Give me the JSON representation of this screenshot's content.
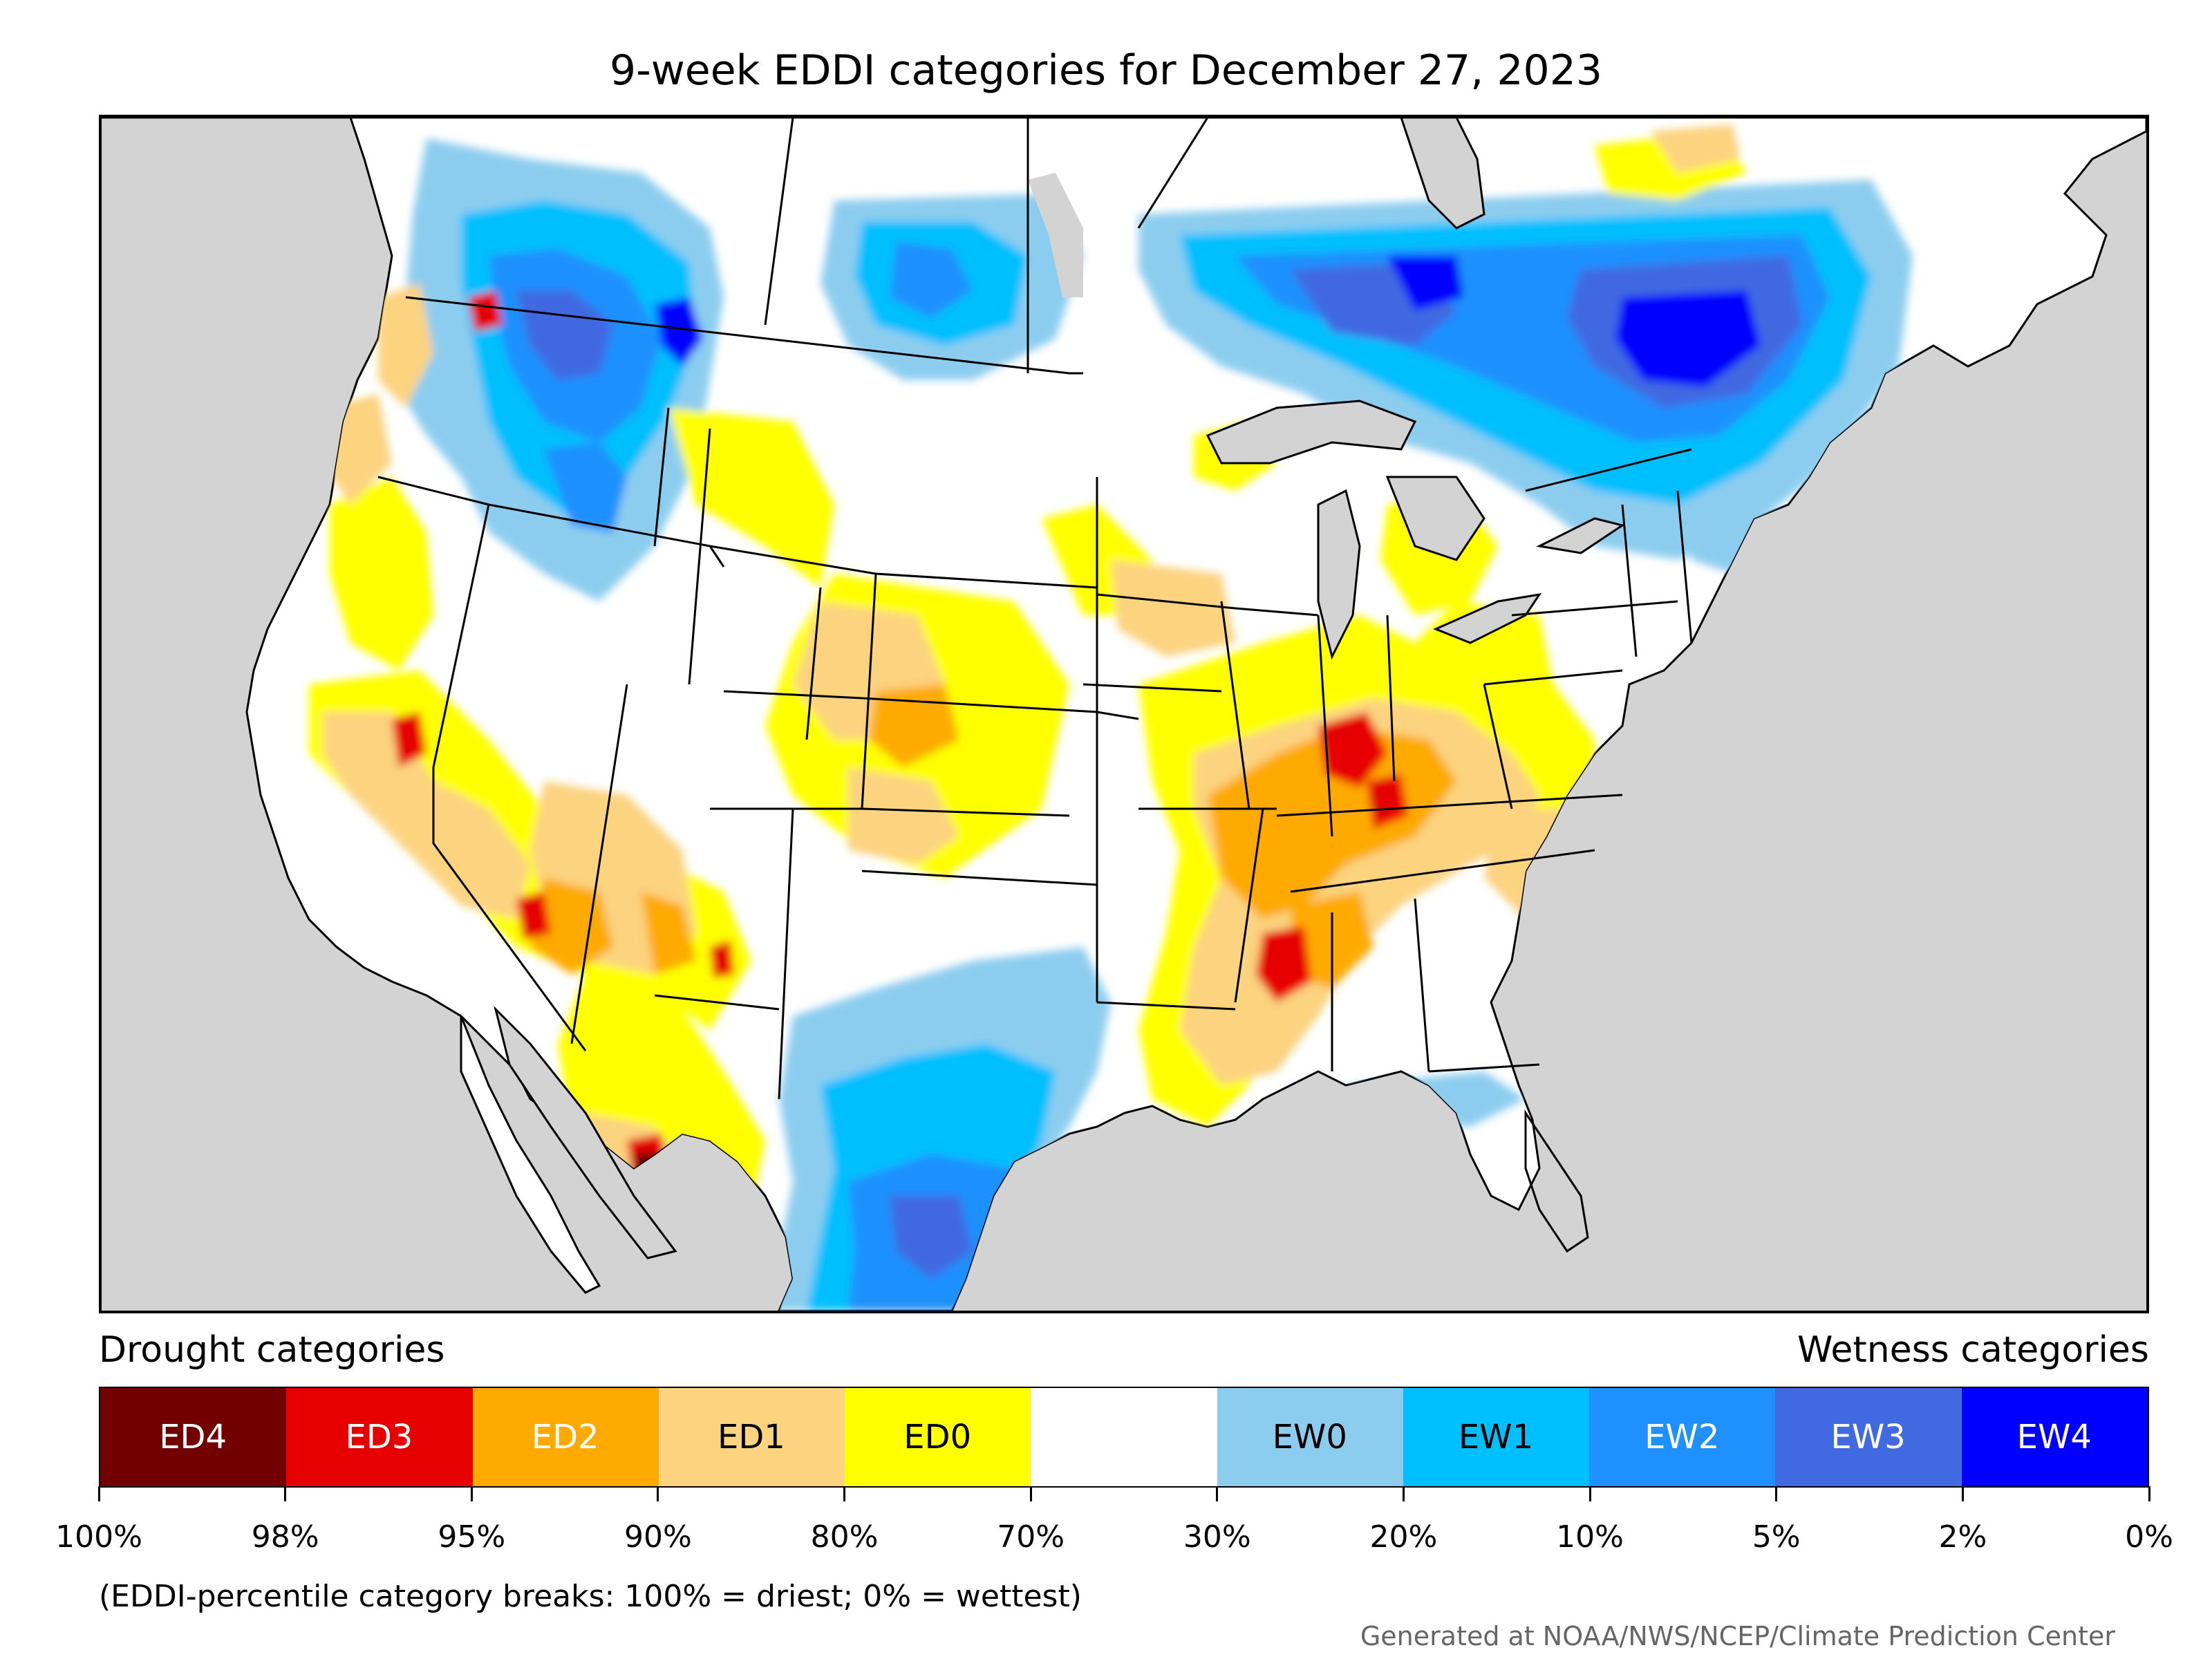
{
  "title": "9-week EDDI categories for December 27, 2023",
  "legend": {
    "drought_heading": "Drought categories",
    "wetness_heading": "Wetness categories",
    "categories": [
      {
        "label": "ED4",
        "color": "#730000",
        "text_color": "#ffffff"
      },
      {
        "label": "ED3",
        "color": "#e60000",
        "text_color": "#ffffff"
      },
      {
        "label": "ED2",
        "color": "#ffaa00",
        "text_color": "#ffffff"
      },
      {
        "label": "ED1",
        "color": "#fcd37f",
        "text_color": "#000000"
      },
      {
        "label": "ED0",
        "color": "#ffff00",
        "text_color": "#000000"
      },
      {
        "label": "",
        "color": "#ffffff",
        "text_color": "#000000"
      },
      {
        "label": "EW0",
        "color": "#8ccdef",
        "text_color": "#000000"
      },
      {
        "label": "EW1",
        "color": "#00bfff",
        "text_color": "#000000"
      },
      {
        "label": "EW2",
        "color": "#1e90ff",
        "text_color": "#ffffff"
      },
      {
        "label": "EW3",
        "color": "#4169e1",
        "text_color": "#ffffff"
      },
      {
        "label": "EW4",
        "color": "#0000ff",
        "text_color": "#ffffff"
      }
    ],
    "breaks": [
      "100%",
      "98%",
      "95%",
      "90%",
      "80%",
      "70%",
      "30%",
      "20%",
      "10%",
      "5%",
      "2%",
      "0%"
    ]
  },
  "note": "(EDDI-percentile category breaks: 100% = driest; 0% = wettest)",
  "credit": "Generated at NOAA/NWS/NCEP/Climate Prediction Center",
  "colors": {
    "ocean_background": "#d3d3d3",
    "land_default": "#ffffff",
    "boundary_line": "#000000"
  }
}
